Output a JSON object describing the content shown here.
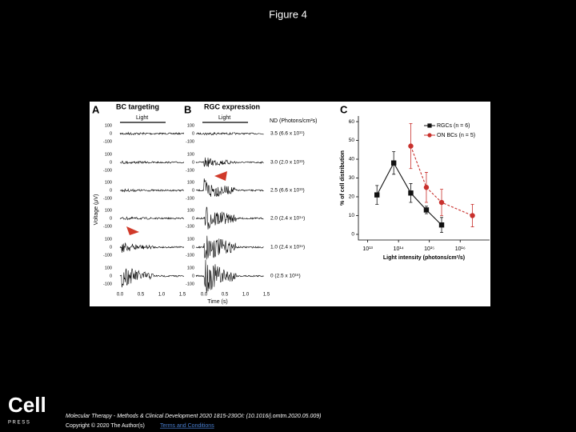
{
  "header": {
    "title": "Figure 4"
  },
  "panel_a": {
    "letter": "A",
    "title": "BC targeting",
    "light": "Light",
    "y_label": "Voltage (μV)",
    "voltage_ticks": [
      "100",
      "0",
      "-100"
    ],
    "time_ticks": [
      "0.0",
      "0.5",
      "1.0",
      "1.5"
    ]
  },
  "panel_b": {
    "letter": "B",
    "title": "RGC expression",
    "light": "Light",
    "nd_label": "ND (Photons/cm²s)",
    "rows": [
      "3.5 (6.6 x 10¹¹)",
      "3.0 (2.0 x 10¹³)",
      "2.5 (6.6 x 10¹³)",
      "2.0 (2.4 x 10¹⁴)",
      "1.0 (2.4 x 10¹⁵)",
      "0 (2.5 x 10¹⁶)"
    ],
    "time_ticks": [
      "0.0",
      "0.5",
      "1.0",
      "1.5"
    ],
    "x_label": "Time (s)"
  },
  "chart_data": {
    "type": "line",
    "letter": "C",
    "x_label": "Light intensity (photons/cm²/s)",
    "y_label": "% of cell distribution",
    "log_x": true,
    "xlim": [
      5000000000000.0,
      9e+16
    ],
    "ylim": [
      -3,
      63
    ],
    "xticks": [
      {
        "value": 10000000000000.0,
        "label": "10¹³"
      },
      {
        "value": 100000000000000.0,
        "label": "10¹⁴"
      },
      {
        "value": 1000000000000000.0,
        "label": "10¹⁵"
      },
      {
        "value": 1e+16,
        "label": "10¹⁶"
      }
    ],
    "yticks": [
      0,
      10,
      20,
      30,
      40,
      50,
      60
    ],
    "legend": "top-right",
    "series": [
      {
        "name": "RGCs (n = 6)",
        "color": "#111111",
        "marker": "square",
        "x": [
          20000000000000.0,
          70000000000000.0,
          250000000000000.0,
          800000000000000.0,
          2500000000000000.0
        ],
        "values": [
          21,
          38,
          22,
          13,
          5
        ],
        "errors": [
          5,
          6,
          5,
          2,
          4
        ]
      },
      {
        "name": "ON BCs (n = 5)",
        "color": "#c8302c",
        "marker": "circle",
        "x": [
          250000000000000.0,
          800000000000000.0,
          2500000000000000.0,
          2.5e+16
        ],
        "values": [
          47,
          25,
          17,
          10
        ],
        "errors": [
          12,
          8,
          7,
          6
        ]
      }
    ]
  },
  "footer": {
    "logo": "Cell",
    "logo_sub": "P R E S S",
    "citation": "Molecular Therapy - Methods & Clinical Development 2020 1815-230OI: (10.1016/j.omtm.2020.05.009)",
    "copyright": "Copyright © 2020 The Author(s)",
    "link": "Terms and Conditions"
  }
}
